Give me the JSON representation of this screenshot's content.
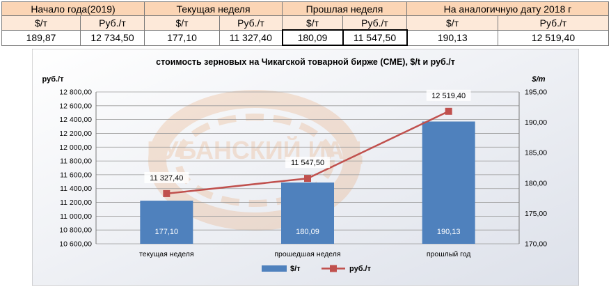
{
  "table": {
    "groups": [
      "Начало года(2019)",
      "Текущая неделя",
      "Прошлая неделя",
      "На аналогичную дату 2018 г"
    ],
    "units": [
      "$/т",
      "Руб./т",
      "$/т",
      "Руб./т",
      "$/т",
      "Руб./т",
      "$/т",
      "Руб./т"
    ],
    "values": [
      "189,87",
      "12 734,50",
      "177,10",
      "11 327,40",
      "180,09",
      "11 547,50",
      "190,13",
      "12 519,40"
    ]
  },
  "chart_data": {
    "type": "bar",
    "title": "стоимость зерновых на Чикагской товарной бирже (CME), $/t и руб./т",
    "y_left_label": "руб./т",
    "y_right_label": "$/т",
    "categories": [
      "текущая неделя",
      "прошедшая неделя",
      "прошлый год"
    ],
    "series": [
      {
        "name": "$/т",
        "type": "bar",
        "axis": "right",
        "color": "#4f81bd",
        "values": [
          177.1,
          180.09,
          190.13
        ],
        "labels": [
          "177,10",
          "180,09",
          "190,13"
        ]
      },
      {
        "name": "руб./т",
        "type": "line",
        "axis": "left",
        "color": "#c0504d",
        "values": [
          11327.4,
          11547.5,
          12519.4
        ],
        "labels": [
          "11 327,40",
          "11 547,50",
          "12 519,40"
        ]
      }
    ],
    "y_left": {
      "min": 10600,
      "max": 12800,
      "ticks": [
        10600,
        10800,
        11000,
        11200,
        11400,
        11600,
        11800,
        12000,
        12200,
        12400,
        12600,
        12800
      ],
      "tick_labels": [
        "10 600,00",
        "10 800,00",
        "11 000,00",
        "11 200,00",
        "11 400,00",
        "11 600,00",
        "11 800,00",
        "12 000,00",
        "12 200,00",
        "12 400,00",
        "12 600,00",
        "12 800,00"
      ]
    },
    "y_right": {
      "min": 170,
      "max": 195,
      "ticks": [
        170,
        175,
        180,
        185,
        190,
        195
      ],
      "tick_labels": [
        "170,00",
        "175,00",
        "180,00",
        "185,00",
        "190,00",
        "195,00"
      ]
    },
    "grid": true,
    "legend_position": "bottom",
    "watermark": "КУБАНСКИЙ ИАЦ"
  }
}
